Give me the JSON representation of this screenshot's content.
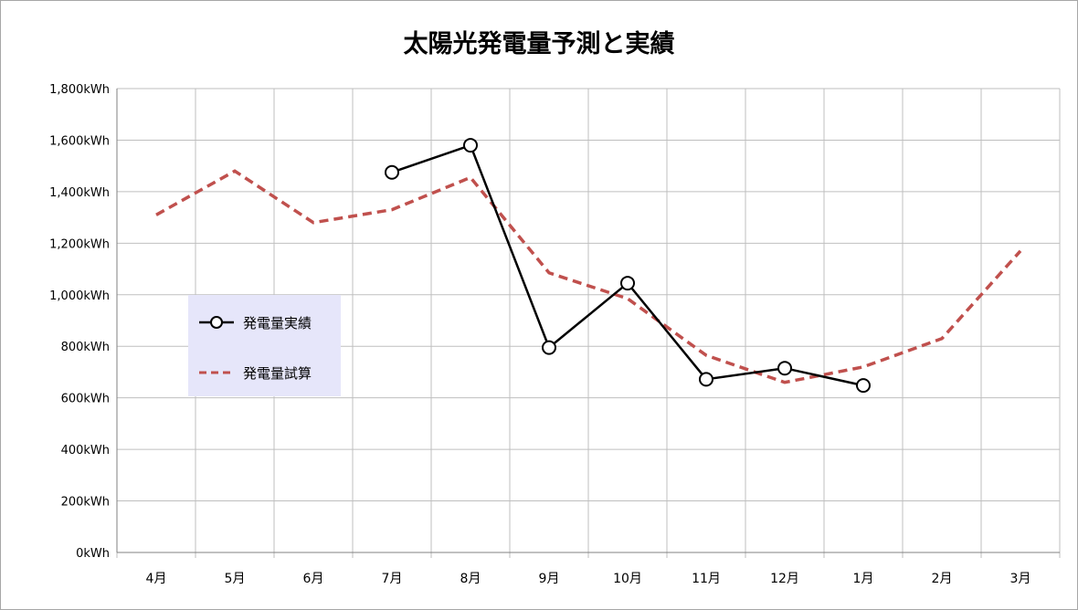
{
  "chart_data": {
    "type": "line",
    "title": "太陽光発電量予測と実績",
    "categories": [
      "4月",
      "5月",
      "6月",
      "7月",
      "8月",
      "9月",
      "10月",
      "11月",
      "12月",
      "1月",
      "2月",
      "3月"
    ],
    "y_ticks": [
      "0kWh",
      "200kWh",
      "400kWh",
      "600kWh",
      "800kWh",
      "1,000kWh",
      "1,200kWh",
      "1,400kWh",
      "1,600kWh",
      "1,800kWh"
    ],
    "ylim": [
      0,
      1800
    ],
    "grid": true,
    "legend_placement": "left-middle",
    "series": [
      {
        "name": "発電量実績",
        "color": "#000000",
        "style": "solid-with-circle-markers",
        "values": [
          null,
          null,
          null,
          1475,
          1580,
          795,
          1045,
          672,
          715,
          648,
          null,
          null
        ]
      },
      {
        "name": "発電量試算",
        "color": "#c0504d",
        "style": "dashed",
        "values": [
          1310,
          1480,
          1280,
          1330,
          1455,
          1085,
          985,
          765,
          660,
          720,
          830,
          1170
        ]
      }
    ]
  }
}
